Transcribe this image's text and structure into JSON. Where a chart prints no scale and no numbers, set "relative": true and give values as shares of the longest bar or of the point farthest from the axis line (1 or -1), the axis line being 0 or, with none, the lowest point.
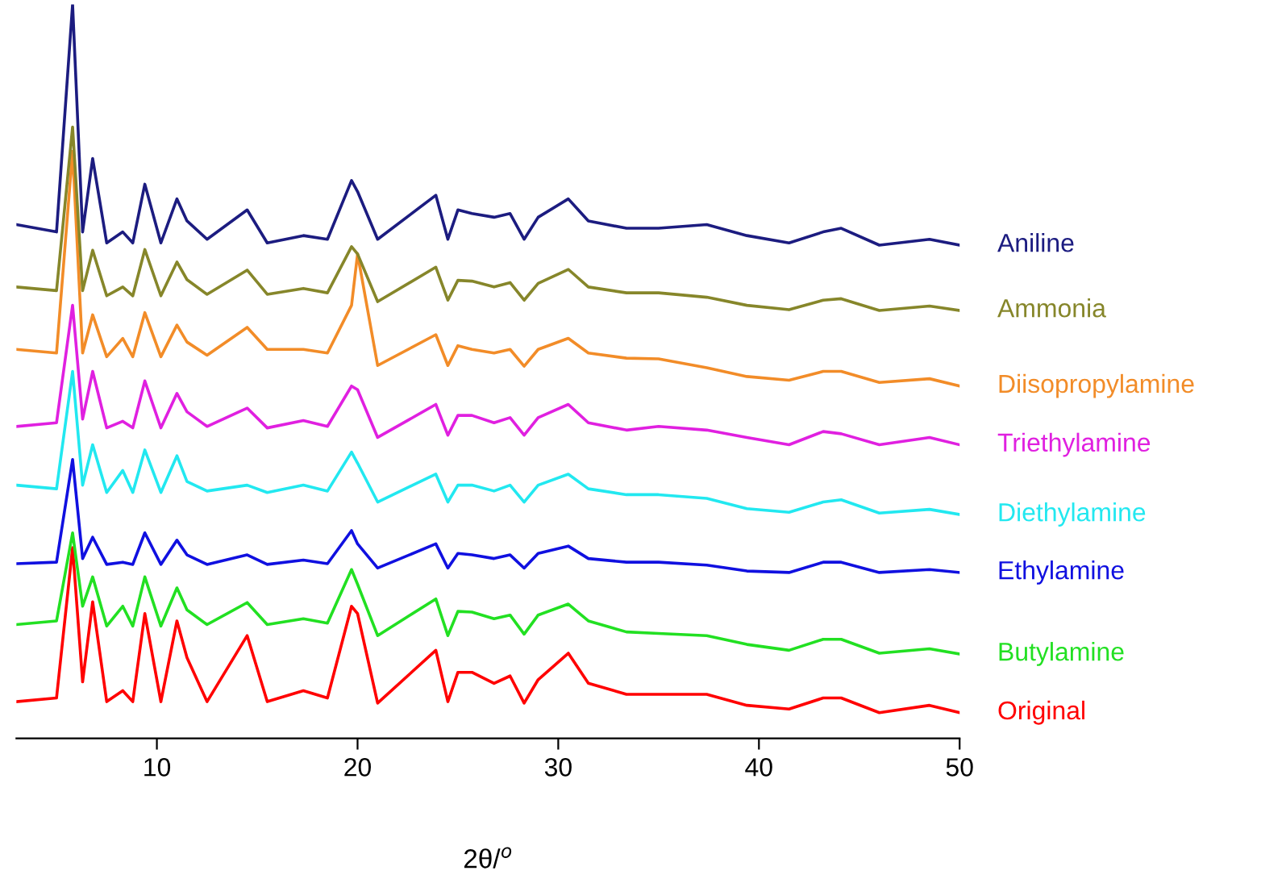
{
  "chart_data": {
    "type": "line",
    "relative": true,
    "xlabel": "2θ/$^{o}$",
    "xlim": [
      3,
      50
    ],
    "xticks": [
      10,
      20,
      30,
      40,
      50
    ],
    "grid": false,
    "legend": false,
    "marker": "none",
    "line_style": "solid",
    "x": [
      3,
      5.0,
      5.8,
      6.3,
      6.8,
      7.5,
      8.3,
      8.8,
      9.4,
      10.2,
      11.0,
      11.5,
      12.5,
      14.5,
      15.5,
      17.3,
      18.5,
      19.7,
      20.0,
      21.0,
      23.9,
      24.5,
      25.0,
      25.7,
      26.8,
      27.6,
      28.3,
      29.0,
      30.5,
      31.5,
      33.4,
      35.0,
      37.4,
      39.4,
      41.5,
      43.2,
      44.1,
      46.0,
      48.5,
      50
    ],
    "series": [
      {
        "name": "Original",
        "color": "#ff0000",
        "values": [
          0.05,
          0.055,
          0.26,
          0.077,
          0.186,
          0.05,
          0.065,
          0.05,
          0.17,
          0.05,
          0.16,
          0.11,
          0.05,
          0.14,
          0.05,
          0.065,
          0.055,
          0.18,
          0.17,
          0.048,
          0.12,
          0.05,
          0.09,
          0.09,
          0.075,
          0.085,
          0.048,
          0.08,
          0.116,
          0.075,
          0.06,
          0.06,
          0.06,
          0.045,
          0.04,
          0.055,
          0.055,
          0.035,
          0.045,
          0.035
        ]
      },
      {
        "name": "Butylamine",
        "color": "#22e022",
        "values": [
          0.155,
          0.16,
          0.28,
          0.18,
          0.22,
          0.153,
          0.18,
          0.153,
          0.22,
          0.153,
          0.205,
          0.175,
          0.155,
          0.185,
          0.155,
          0.163,
          0.157,
          0.23,
          0.21,
          0.14,
          0.19,
          0.14,
          0.173,
          0.172,
          0.163,
          0.168,
          0.142,
          0.168,
          0.183,
          0.16,
          0.145,
          0.143,
          0.14,
          0.128,
          0.12,
          0.135,
          0.135,
          0.116,
          0.122,
          0.115
        ]
      },
      {
        "name": "Ethylamine",
        "color": "#1010e0",
        "values": [
          0.238,
          0.24,
          0.38,
          0.245,
          0.274,
          0.237,
          0.24,
          0.237,
          0.28,
          0.237,
          0.27,
          0.25,
          0.237,
          0.25,
          0.237,
          0.243,
          0.238,
          0.283,
          0.265,
          0.232,
          0.265,
          0.232,
          0.252,
          0.25,
          0.245,
          0.25,
          0.232,
          0.252,
          0.262,
          0.245,
          0.24,
          0.24,
          0.236,
          0.228,
          0.226,
          0.24,
          0.24,
          0.226,
          0.23,
          0.226
        ]
      },
      {
        "name": "Diethylamine",
        "color": "#22e8f0",
        "values": [
          0.345,
          0.34,
          0.5,
          0.345,
          0.4,
          0.335,
          0.365,
          0.335,
          0.393,
          0.335,
          0.385,
          0.35,
          0.337,
          0.345,
          0.335,
          0.345,
          0.337,
          0.39,
          0.375,
          0.322,
          0.36,
          0.322,
          0.345,
          0.345,
          0.337,
          0.345,
          0.322,
          0.345,
          0.36,
          0.34,
          0.332,
          0.332,
          0.327,
          0.313,
          0.308,
          0.322,
          0.325,
          0.307,
          0.312,
          0.305
        ]
      },
      {
        "name": "Triethylamine",
        "color": "#e020e0",
        "values": [
          0.425,
          0.43,
          0.59,
          0.435,
          0.5,
          0.423,
          0.432,
          0.423,
          0.487,
          0.423,
          0.47,
          0.445,
          0.425,
          0.45,
          0.423,
          0.433,
          0.425,
          0.48,
          0.475,
          0.41,
          0.455,
          0.413,
          0.44,
          0.44,
          0.43,
          0.437,
          0.413,
          0.437,
          0.455,
          0.43,
          0.42,
          0.425,
          0.42,
          0.41,
          0.4,
          0.418,
          0.415,
          0.4,
          0.41,
          0.4
        ]
      },
      {
        "name": "Diisopropylamine",
        "color": "#f28c28",
        "values": [
          0.53,
          0.525,
          0.8,
          0.525,
          0.577,
          0.52,
          0.545,
          0.52,
          0.58,
          0.52,
          0.563,
          0.54,
          0.522,
          0.56,
          0.53,
          0.53,
          0.525,
          0.59,
          0.66,
          0.508,
          0.55,
          0.508,
          0.535,
          0.53,
          0.525,
          0.53,
          0.507,
          0.53,
          0.545,
          0.525,
          0.518,
          0.517,
          0.505,
          0.493,
          0.488,
          0.5,
          0.5,
          0.485,
          0.49,
          0.48
        ]
      },
      {
        "name": "Ammonia",
        "color": "#86862a",
        "values": [
          0.615,
          0.61,
          0.833,
          0.61,
          0.665,
          0.603,
          0.615,
          0.603,
          0.666,
          0.603,
          0.649,
          0.625,
          0.605,
          0.638,
          0.605,
          0.613,
          0.607,
          0.67,
          0.66,
          0.595,
          0.642,
          0.597,
          0.624,
          0.623,
          0.615,
          0.621,
          0.597,
          0.62,
          0.639,
          0.615,
          0.607,
          0.607,
          0.601,
          0.59,
          0.584,
          0.597,
          0.599,
          0.583,
          0.589,
          0.583
        ]
      },
      {
        "name": "Aniline",
        "color": "#1c1c80",
        "values": [
          0.7,
          0.69,
          1.0,
          0.69,
          0.79,
          0.675,
          0.69,
          0.675,
          0.755,
          0.675,
          0.735,
          0.705,
          0.68,
          0.72,
          0.675,
          0.685,
          0.68,
          0.76,
          0.745,
          0.68,
          0.74,
          0.68,
          0.72,
          0.715,
          0.71,
          0.715,
          0.68,
          0.71,
          0.735,
          0.705,
          0.695,
          0.695,
          0.7,
          0.685,
          0.675,
          0.69,
          0.695,
          0.672,
          0.68,
          0.672
        ]
      }
    ]
  }
}
